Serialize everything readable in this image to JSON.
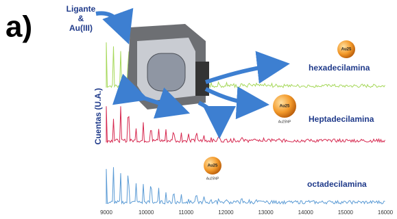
{
  "panel_label": "a)",
  "inputs": {
    "ligand": "Ligante",
    "amp": "&",
    "metal": "Au(III)"
  },
  "y_axis_label": "Cuentas (U.A.)",
  "x_axis": {
    "ticks": [
      "9000",
      "10000",
      "11000",
      "12000",
      "13000",
      "14000",
      "15000",
      "16000"
    ]
  },
  "spectra": [
    {
      "label": "hexadecilamina",
      "cluster_label": "Au25"
    },
    {
      "label": "Heptadecilamina",
      "cluster_label": "Au25",
      "cluster_sublabel": "Au25NP"
    },
    {
      "label": "octadecilamina",
      "cluster_label": "Au25",
      "cluster_sublabel": "Au25NP"
    }
  ]
}
